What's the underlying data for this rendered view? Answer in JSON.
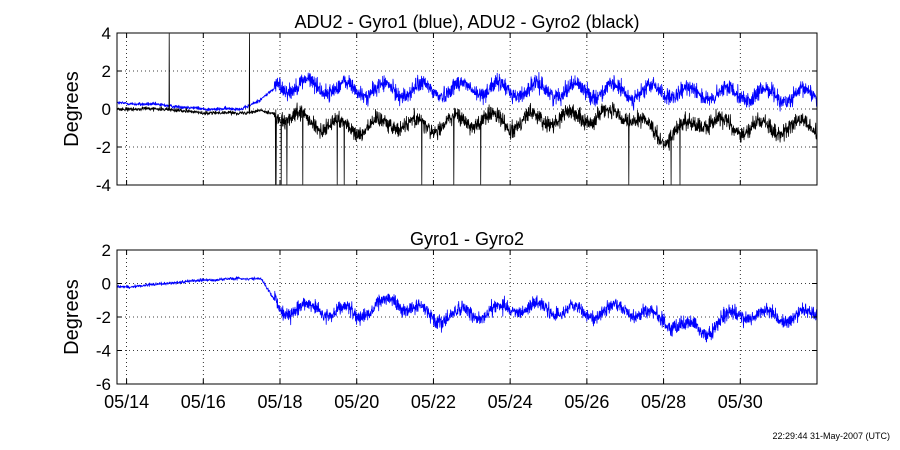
{
  "timestamp": "22:29:44 31-May-2007 (UTC)",
  "chart_data": [
    {
      "type": "line",
      "title": "ADU2 - Gyro1 (blue), ADU2 - Gyro2 (black)",
      "ylabel": "Degrees",
      "xlabel": "",
      "xlim": [
        "2007-05-13T18:00",
        "2007-06-01T00:00"
      ],
      "ylim": [
        -4,
        4
      ],
      "yticks": [
        -4,
        -2,
        0,
        2,
        4
      ],
      "xticks": [
        "05/14",
        "05/16",
        "05/18",
        "05/20",
        "05/22",
        "05/24",
        "05/26",
        "05/28",
        "05/30"
      ],
      "xtick_dates": [
        "2007-05-14",
        "2007-05-16",
        "2007-05-18",
        "2007-05-20",
        "2007-05-22",
        "2007-05-24",
        "2007-05-26",
        "2007-05-28",
        "2007-05-30"
      ],
      "grid": true,
      "series": [
        {
          "color": "#0000ff",
          "x": [
            "2007-05-13T18:00",
            "2007-05-14",
            "2007-05-15",
            "2007-05-16",
            "2007-05-17",
            "2007-05-17T12:00",
            "2007-05-18",
            "2007-05-19",
            "2007-05-20",
            "2007-05-21",
            "2007-05-22",
            "2007-05-23",
            "2007-05-24",
            "2007-05-25",
            "2007-05-26",
            "2007-05-27",
            "2007-05-28",
            "2007-05-29",
            "2007-05-30",
            "2007-05-31",
            "2007-06-01"
          ],
          "values": [
            0.3,
            0.3,
            0.2,
            0.0,
            0.0,
            0.5,
            1.3,
            1.2,
            1.0,
            1.0,
            1.0,
            1.1,
            1.0,
            1.0,
            1.0,
            0.9,
            0.9,
            0.8,
            0.8,
            0.7,
            0.7
          ]
        },
        {
          "color": "#000000",
          "x": [
            "2007-05-13T18:00",
            "2007-05-14",
            "2007-05-15",
            "2007-05-16",
            "2007-05-17",
            "2007-05-17T12:00",
            "2007-05-18",
            "2007-05-19",
            "2007-05-20",
            "2007-05-21",
            "2007-05-22",
            "2007-05-23",
            "2007-05-24",
            "2007-05-25",
            "2007-05-26",
            "2007-05-27",
            "2007-05-28",
            "2007-05-29",
            "2007-05-30",
            "2007-05-31",
            "2007-06-01"
          ],
          "values": [
            0.0,
            0.0,
            0.0,
            -0.2,
            -0.2,
            -0.1,
            -0.3,
            -0.8,
            -1.0,
            -0.7,
            -0.9,
            -0.5,
            -0.7,
            -0.5,
            -0.4,
            -0.3,
            -1.5,
            -0.6,
            -1.0,
            -1.0,
            -0.9
          ]
        }
      ]
    },
    {
      "type": "line",
      "title": "Gyro1 - Gyro2",
      "ylabel": "Degrees",
      "xlabel": "",
      "xlim": [
        "2007-05-13T18:00",
        "2007-06-01T00:00"
      ],
      "ylim": [
        -6,
        2
      ],
      "yticks": [
        -6,
        -4,
        -2,
        0,
        2
      ],
      "xticks": [
        "05/14",
        "05/16",
        "05/18",
        "05/20",
        "05/22",
        "05/24",
        "05/26",
        "05/28",
        "05/30"
      ],
      "xtick_dates": [
        "2007-05-14",
        "2007-05-16",
        "2007-05-18",
        "2007-05-20",
        "2007-05-22",
        "2007-05-24",
        "2007-05-26",
        "2007-05-28",
        "2007-05-30"
      ],
      "grid": true,
      "series": [
        {
          "color": "#0000ff",
          "x": [
            "2007-05-13T18:00",
            "2007-05-14",
            "2007-05-15",
            "2007-05-16",
            "2007-05-17",
            "2007-05-17T12:00",
            "2007-05-18",
            "2007-05-19",
            "2007-05-20",
            "2007-05-21",
            "2007-05-22",
            "2007-05-23",
            "2007-05-24",
            "2007-05-25",
            "2007-05-26",
            "2007-05-27",
            "2007-05-28",
            "2007-05-29",
            "2007-05-30",
            "2007-05-31",
            "2007-06-01"
          ],
          "values": [
            -0.2,
            -0.2,
            0.0,
            0.2,
            0.3,
            0.3,
            -1.5,
            -1.5,
            -1.8,
            -1.0,
            -2.0,
            -1.8,
            -1.5,
            -1.5,
            -1.8,
            -1.5,
            -2.2,
            -2.8,
            -1.8,
            -2.0,
            -1.8
          ]
        }
      ]
    }
  ]
}
